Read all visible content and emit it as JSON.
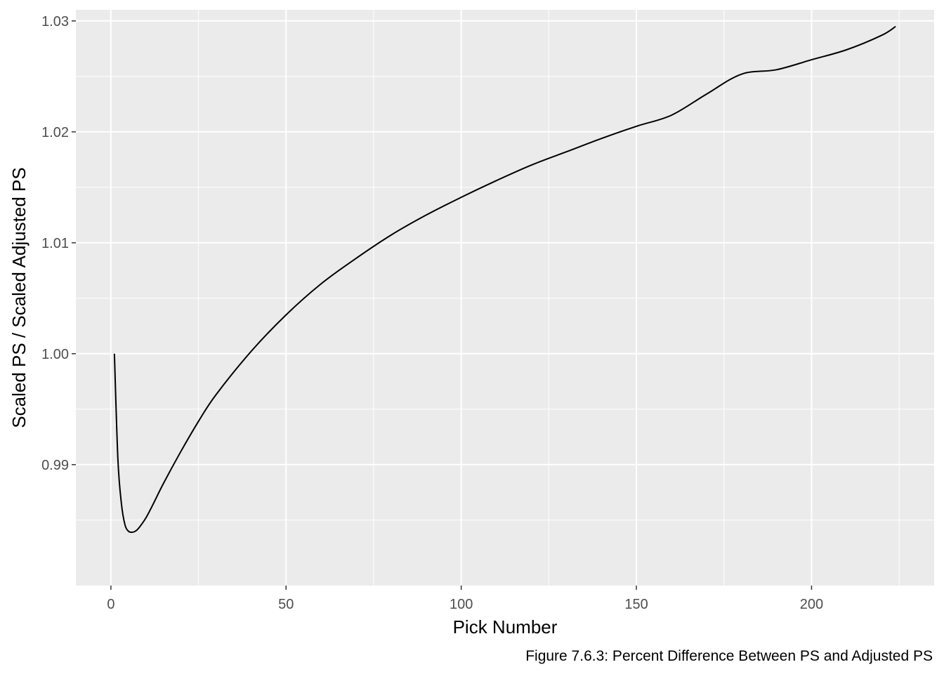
{
  "chart_data": {
    "type": "line",
    "title": "",
    "xlabel": "Pick Number",
    "ylabel": "Scaled PS / Scaled Adjusted PS",
    "caption": "Figure 7.6.3: Percent Difference Between PS and Adjusted PS",
    "xlim": [
      -10,
      235
    ],
    "ylim": [
      0.9791,
      1.031
    ],
    "x_ticks": [
      0,
      50,
      100,
      150,
      200
    ],
    "x_tick_labels": [
      "0",
      "50",
      "100",
      "150",
      "200"
    ],
    "y_ticks": [
      0.99,
      1.0,
      1.01,
      1.02,
      1.03
    ],
    "y_tick_labels": [
      "0.99",
      "1.00",
      "1.01",
      "1.02",
      "1.03"
    ],
    "grid": true,
    "legend": "none",
    "colors": {
      "panel": "#ebebeb",
      "grid": "#ffffff",
      "line": "#000000"
    },
    "series": [
      {
        "x": [
          1,
          2,
          3,
          4,
          5,
          6,
          7,
          8,
          10,
          12,
          15,
          20,
          25,
          30,
          40,
          50,
          60,
          70,
          80,
          90,
          100,
          110,
          120,
          130,
          140,
          150,
          160,
          170,
          180,
          190,
          200,
          210,
          220,
          224
        ],
        "y": [
          1.0,
          0.9905,
          0.9865,
          0.9846,
          0.984,
          0.9839,
          0.984,
          0.9843,
          0.9852,
          0.9864,
          0.9883,
          0.9912,
          0.9939,
          0.9963,
          1.0002,
          1.0035,
          1.0063,
          1.0086,
          1.0107,
          1.0125,
          1.0141,
          1.0156,
          1.017,
          1.0182,
          1.0194,
          1.0205,
          1.0215,
          1.0234,
          1.0252,
          1.0256,
          1.0265,
          1.0274,
          1.0287,
          1.0295
        ]
      }
    ]
  }
}
